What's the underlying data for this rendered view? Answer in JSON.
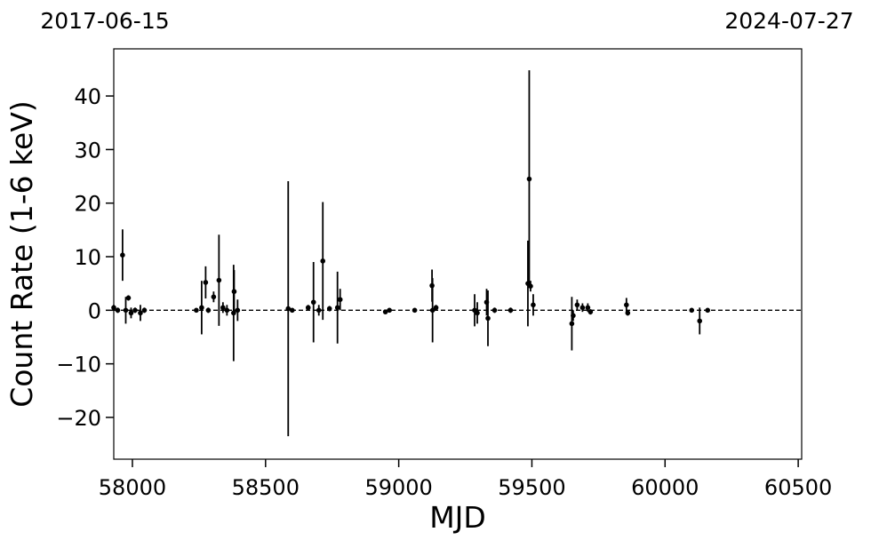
{
  "chart_data": {
    "type": "scatter",
    "annotations": [
      "2017-06-15",
      "2024-07-27"
    ],
    "xlabel": "MJD",
    "ylabel": "Count Rate (1-6 keV)",
    "xlim": [
      57930,
      60513
    ],
    "ylim": [
      -27.8,
      48.8
    ],
    "xticks": [
      58000,
      58500,
      59000,
      59500,
      60000,
      60500
    ],
    "yticks": [
      {
        "value": -20,
        "label": "−20"
      },
      {
        "value": -10,
        "label": "−10"
      },
      0,
      10,
      20,
      30,
      40
    ],
    "series": [
      {
        "color": "#000000",
        "x": [
          57930,
          57945,
          57963,
          57975,
          57985,
          57995,
          58010,
          58030,
          58045,
          58240,
          58260,
          58275,
          58285,
          58305,
          58325,
          58340,
          58355,
          58380,
          58382,
          58395,
          58585,
          58600,
          58660,
          58680,
          58700,
          58715,
          58740,
          58770,
          58780,
          58950,
          58965,
          59060,
          59125,
          59127,
          59140,
          59285,
          59295,
          59330,
          59335,
          59360,
          59420,
          59485,
          59490,
          59495,
          59505,
          59650,
          59655,
          59670,
          59690,
          59710,
          59720,
          59855,
          59860,
          60100,
          60130,
          60160
        ],
        "values": [
          0.5,
          0,
          10.3,
          0,
          2.3,
          -0.5,
          0,
          -0.5,
          0,
          0,
          0.5,
          5.2,
          0,
          2.5,
          5.6,
          0.5,
          0,
          -0.5,
          3.5,
          0,
          0.3,
          0,
          0.5,
          1.5,
          0,
          9.2,
          0.3,
          0.5,
          2,
          -0.3,
          0,
          0,
          4.6,
          0,
          0.5,
          0,
          -0.5,
          1.5,
          -1.5,
          0,
          0,
          5,
          24.5,
          4.5,
          1,
          -2.5,
          -1,
          1,
          0.5,
          0.5,
          -0.3,
          1,
          -0.5,
          0,
          -2,
          0
        ],
        "errors": [
          0.5,
          0.5,
          4.8,
          2.5,
          0.5,
          1,
          0.5,
          1.5,
          0.5,
          0.3,
          5,
          3,
          0.5,
          1,
          8.5,
          1,
          1,
          9,
          4,
          2,
          23.8,
          0.3,
          0.5,
          7.5,
          1,
          11,
          0.5,
          6.7,
          2,
          0.3,
          0.3,
          0.3,
          3,
          6,
          0.5,
          3,
          2,
          2.5,
          5.2,
          0.5,
          0.5,
          8,
          20.3,
          1,
          2,
          5,
          1,
          1,
          0.8,
          0.8,
          0.5,
          1.3,
          0.5,
          0.3,
          2.5,
          0.3
        ]
      }
    ]
  }
}
